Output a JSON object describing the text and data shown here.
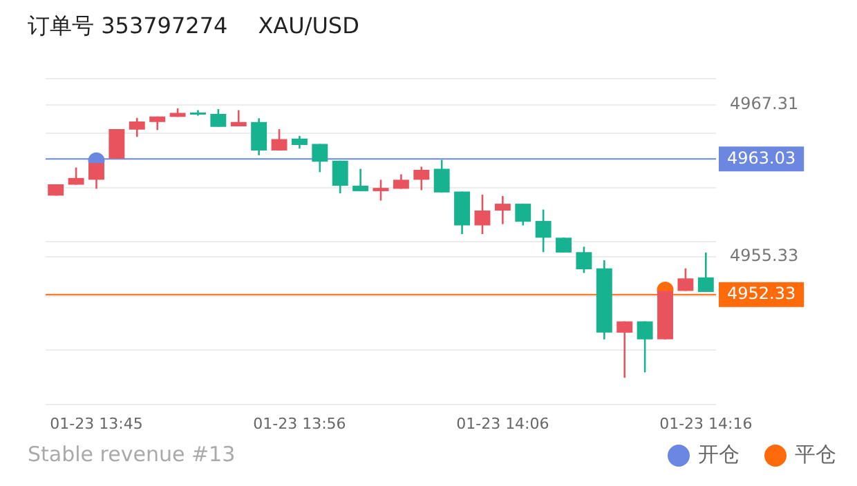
{
  "chart_data": {
    "type": "candlestick",
    "title": "订单号 353797274",
    "subtitle": "XAU/USD",
    "categories": [
      null,
      null,
      "01-23 13:45",
      null,
      null,
      null,
      null,
      null,
      null,
      null,
      null,
      null,
      "01-23 13:56",
      null,
      null,
      null,
      null,
      null,
      null,
      null,
      null,
      null,
      "01-23 14:06",
      null,
      null,
      null,
      null,
      null,
      null,
      null,
      null,
      null,
      "01-23 14:16"
    ],
    "series": [
      {
        "ohlc": [
          [
            4960.14,
            4961.03,
            4960.14,
            4961.03
          ],
          [
            4961.0,
            4962.36,
            4961.0,
            4961.53
          ],
          [
            4961.39,
            4962.71,
            4960.68,
            4962.71
          ],
          [
            4963.06,
            4965.38,
            4963.06,
            4965.38
          ],
          [
            4965.35,
            4966.27,
            4964.77,
            4965.99
          ],
          [
            4965.95,
            4966.38,
            4965.31,
            4966.38
          ],
          [
            4966.35,
            4967.02,
            4966.35,
            4966.67
          ],
          [
            4966.7,
            4966.88,
            4966.45,
            4966.53
          ],
          [
            4966.59,
            4966.96,
            4965.57,
            4965.57
          ],
          [
            4965.6,
            4966.88,
            4965.6,
            4965.95
          ],
          [
            4965.95,
            4966.24,
            4963.32,
            4963.7
          ],
          [
            4963.7,
            4965.38,
            4963.7,
            4964.6
          ],
          [
            4964.64,
            4964.85,
            4963.85,
            4964.13
          ],
          [
            4964.21,
            4964.21,
            4961.99,
            4962.82
          ],
          [
            4962.89,
            4962.89,
            4960.32,
            4960.92
          ],
          [
            4960.92,
            4962.25,
            4960.49,
            4960.49
          ],
          [
            4960.49,
            4961.39,
            4959.75,
            4960.75
          ],
          [
            4960.68,
            4961.82,
            4960.68,
            4961.39
          ],
          [
            4961.39,
            4962.42,
            4960.57,
            4962.17
          ],
          [
            4962.25,
            4962.96,
            4960.39,
            4960.39
          ],
          [
            4960.46,
            4960.46,
            4957.11,
            4957.79
          ],
          [
            4957.79,
            4960.22,
            4957.11,
            4958.96
          ],
          [
            4958.96,
            4960.11,
            4957.89,
            4959.5
          ],
          [
            4959.5,
            4959.5,
            4957.79,
            4958.08
          ],
          [
            4958.14,
            4959.04,
            4955.68,
            4956.82
          ],
          [
            4956.82,
            4956.82,
            4955.65,
            4955.65
          ],
          [
            4955.68,
            4956.11,
            4954.04,
            4954.33
          ],
          [
            4954.4,
            4955.04,
            4948.8,
            4949.33
          ],
          [
            4949.33,
            4950.22,
            4945.77,
            4950.22
          ],
          [
            4950.22,
            4950.22,
            4946.2,
            4948.8
          ],
          [
            4948.8,
            4952.62,
            4948.8,
            4952.62
          ],
          [
            4952.62,
            4954.4,
            4952.62,
            4953.61
          ],
          [
            4953.69,
            4955.65,
            4952.54,
            4952.54
          ]
        ],
        "colors": [
          "#e8535e",
          "#e8535e",
          "#e8535e",
          "#e8535e",
          "#e8535e",
          "#e8535e",
          "#e8535e",
          "#17b28f",
          "#17b28f",
          "#e8535e",
          "#17b28f",
          "#e8535e",
          "#17b28f",
          "#17b28f",
          "#17b28f",
          "#17b28f",
          "#e8535e",
          "#e8535e",
          "#e8535e",
          "#17b28f",
          "#17b28f",
          "#e8535e",
          "#e8535e",
          "#17b28f",
          "#17b28f",
          "#17b28f",
          "#17b28f",
          "#17b28f",
          "#e8535e",
          "#17b28f",
          "#e8535e",
          "#e8535e",
          "#17b28f"
        ]
      },
      {
        "type": "scatter",
        "name": "开仓",
        "color": "#6b87e0",
        "values": [
          null,
          null,
          4962.9,
          null,
          null,
          null,
          null,
          null,
          null,
          null,
          null,
          null,
          null,
          null,
          null,
          null,
          null,
          null,
          null,
          null,
          null,
          null,
          null,
          null,
          null,
          null,
          null,
          null,
          null,
          null,
          null,
          null,
          null
        ]
      },
      {
        "type": "scatter",
        "name": "平仓",
        "color": "#ff6a0a",
        "values": [
          null,
          null,
          null,
          null,
          null,
          null,
          null,
          null,
          null,
          null,
          null,
          null,
          null,
          null,
          null,
          null,
          null,
          null,
          null,
          null,
          null,
          null,
          null,
          null,
          null,
          null,
          null,
          null,
          null,
          null,
          4952.7,
          null,
          null
        ]
      }
    ],
    "ylim": [
      4943.66,
      4969.34
    ],
    "yticks": [
      {
        "value": 4969.34,
        "label": null
      },
      4967.31,
      {
        "value": 4965.06,
        "label": null
      },
      {
        "value": 4960.78,
        "label": null
      },
      {
        "value": 4956.5,
        "label": null
      },
      4955.33,
      {
        "value": 4952.22,
        "label": null
      },
      {
        "value": 4947.94,
        "label": null
      },
      {
        "value": 4943.66,
        "label": null
      }
    ],
    "grid": "y",
    "legend": "bottom right",
    "marker": "circle",
    "ref_lines": [
      {
        "axis": "y",
        "value": 4963.03,
        "label": "4963.03",
        "color": "#6b87e0"
      },
      {
        "axis": "y",
        "value": 4952.33,
        "label": "4952.33",
        "color": "#ff6a0a"
      }
    ],
    "annotations": [
      "Stable revenue #13"
    ]
  }
}
